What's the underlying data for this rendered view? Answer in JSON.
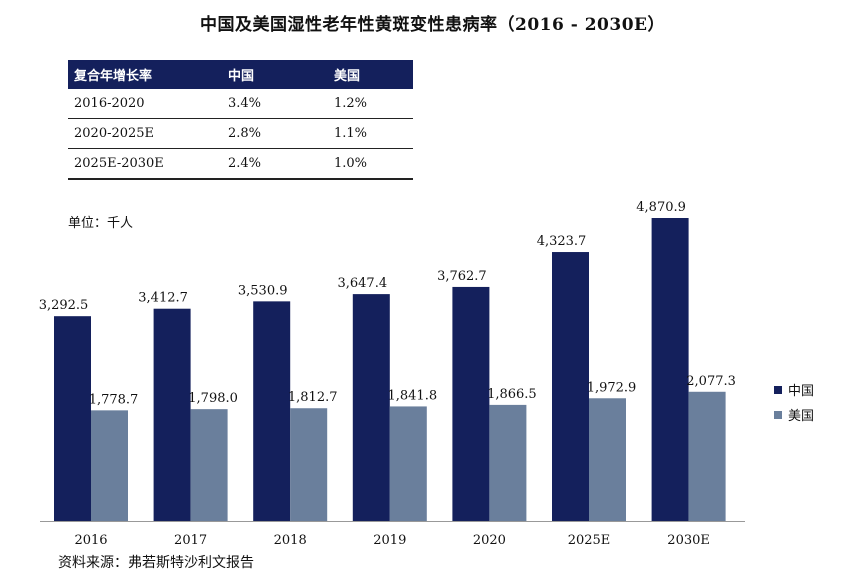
{
  "title": "中国及美国湿性老年性黄斑变性患病率（2016 - 2030E）",
  "cagr_table": {
    "headers": [
      "复合年增长率",
      "中国",
      "美国"
    ],
    "rows": [
      [
        "2016-2020",
        "3.4%",
        "1.2%"
      ],
      [
        "2020-2025E",
        "2.8%",
        "1.1%"
      ],
      [
        "2025E-2030E",
        "2.4%",
        "1.0%"
      ]
    ]
  },
  "unit_label": "单位：千人",
  "source": "资料来源：弗若斯特沙利文报告",
  "colors": {
    "china": "#14205c",
    "usa": "#6a7f9c",
    "header_bg": "#14205c"
  },
  "chart_data": {
    "type": "bar",
    "categories": [
      "2016",
      "2017",
      "2018",
      "2019",
      "2020",
      "2025E",
      "2030E"
    ],
    "series": [
      {
        "name": "中国",
        "values": [
          3292.5,
          3412.7,
          3530.9,
          3647.4,
          3762.7,
          4323.7,
          4870.9
        ],
        "labels": [
          "3,292.5",
          "3,412.7",
          "3,530.9",
          "3,647.4",
          "3,762.7",
          "4,323.7",
          "4,870.9"
        ]
      },
      {
        "name": "美国",
        "values": [
          1778.7,
          1798.0,
          1812.7,
          1841.8,
          1866.5,
          1972.9,
          2077.3
        ],
        "labels": [
          "1,778.7",
          "1,798.0",
          "1,812.7",
          "1,841.8",
          "1,866.5",
          "1,972.9",
          "2,077.3"
        ]
      }
    ],
    "ylim": [
      0,
      5000
    ],
    "grid": false,
    "legend_position": "right"
  }
}
